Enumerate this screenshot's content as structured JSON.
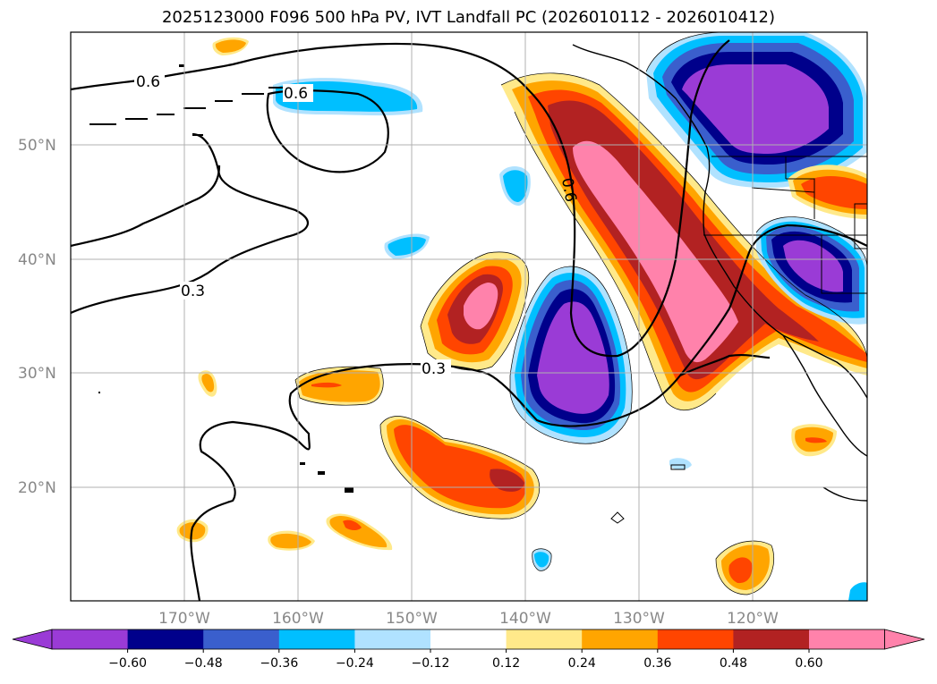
{
  "title": "2025123000 F096 500 hPa PV, IVT Landfall PC (2026010112 - 2026010412)",
  "lat_labels": [
    "50°N",
    "40°N",
    "30°N",
    "20°N"
  ],
  "lon_labels": [
    "170°W",
    "160°W",
    "150°W",
    "140°W",
    "130°W",
    "120°W"
  ],
  "contour_labels": [
    "0.6",
    "0.6",
    "0.3",
    "0.3",
    "0.6"
  ],
  "colorbar": {
    "ticks": [
      "−0.60",
      "−0.48",
      "−0.36",
      "−0.24",
      "−0.12",
      "0.12",
      "0.24",
      "0.36",
      "0.48",
      "0.60"
    ],
    "colors": [
      "#9a3bd6",
      "#00008b",
      "#3a5fcd",
      "#00bfff",
      "#b0e2ff",
      "#ffffff",
      "#ffe98a",
      "#ffa500",
      "#ff4500",
      "#b22222",
      "#ff82ab",
      "#ff82ab"
    ]
  }
}
